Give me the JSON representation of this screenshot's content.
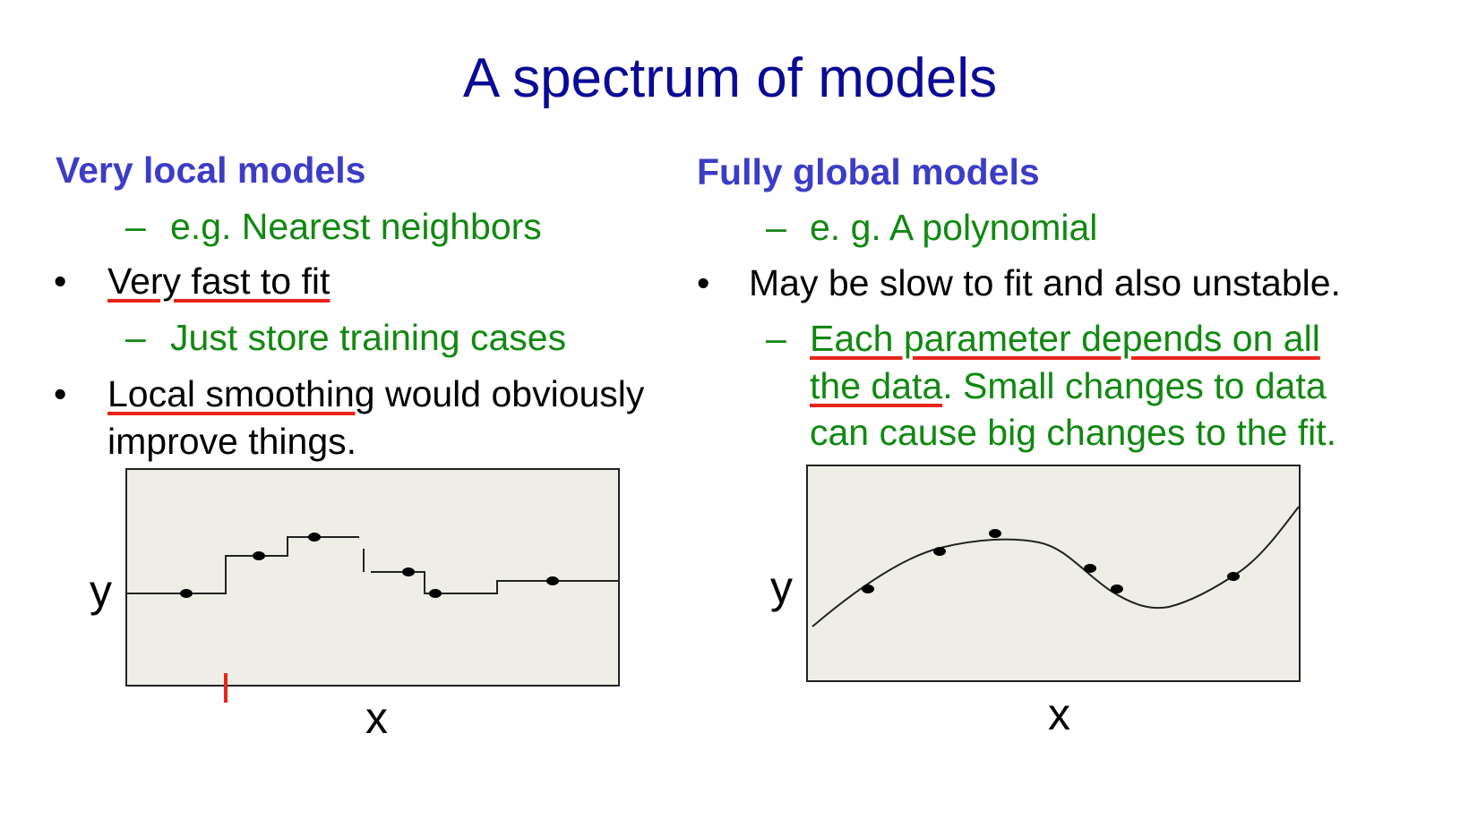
{
  "title": "A spectrum of models",
  "left": {
    "heading": "Very local models",
    "example": "e.g. Nearest neighbors",
    "bullet1_underlined": "Very fast to fit",
    "sub1": "Just store training cases",
    "bullet2_underlined": "Local smoothing",
    "bullet2_rest": " would obviously",
    "bullet2_line2": "improve things.",
    "x_label": "x",
    "y_label": "y"
  },
  "right": {
    "heading": "Fully global models",
    "example": "e. g. A polynomial",
    "bullet1": "May be slow to fit and also unstable.",
    "sub1_underlined_line1": "Each parameter depends on all",
    "sub1_underlined_line2": "the data",
    "sub1_rest_line2": ". Small changes to data",
    "sub1_line3": "can cause big changes to the fit.",
    "x_label": "x",
    "y_label": "y"
  },
  "symbols": {
    "dash": "–",
    "bullet": "•"
  },
  "colors": {
    "title": "#0a0a96",
    "heading": "#3c3cc8",
    "green_text": "#118811",
    "underline": "#e8241c",
    "panel_bg": "#efeee6"
  }
}
